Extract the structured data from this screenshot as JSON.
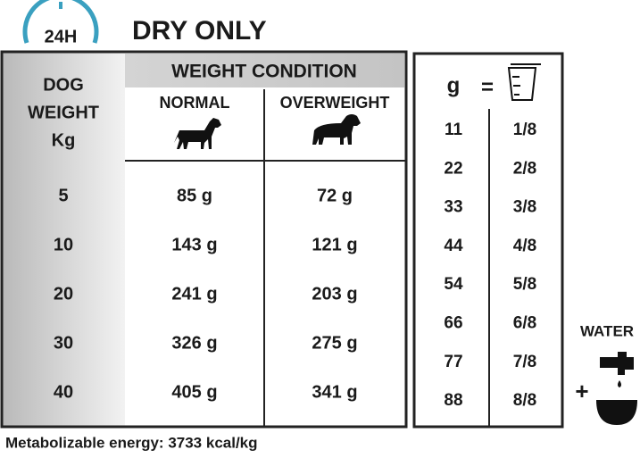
{
  "badge": "24H",
  "title": "DRY ONLY",
  "feeding_table": {
    "weight_header": [
      "DOG",
      "WEIGHT",
      "Kg"
    ],
    "condition_header": "WEIGHT CONDITION",
    "columns": [
      "NORMAL",
      "OVERWEIGHT"
    ],
    "rows": [
      [
        "5",
        "85 g",
        "72 g"
      ],
      [
        "10",
        "143 g",
        "121 g"
      ],
      [
        "20",
        "241 g",
        "203 g"
      ],
      [
        "30",
        "326 g",
        "275 g"
      ],
      [
        "40",
        "405 g",
        "341 g"
      ]
    ]
  },
  "cup_table": {
    "header": [
      "g",
      "="
    ],
    "rows": [
      [
        "11",
        "1/8"
      ],
      [
        "22",
        "2/8"
      ],
      [
        "33",
        "3/8"
      ],
      [
        "44",
        "4/8"
      ],
      [
        "54",
        "5/8"
      ],
      [
        "66",
        "6/8"
      ],
      [
        "77",
        "7/8"
      ],
      [
        "88",
        "8/8"
      ]
    ]
  },
  "water": {
    "label": "WATER",
    "plus": "+"
  },
  "footer": "Metabolizable energy: 3733 kcal/kg"
}
